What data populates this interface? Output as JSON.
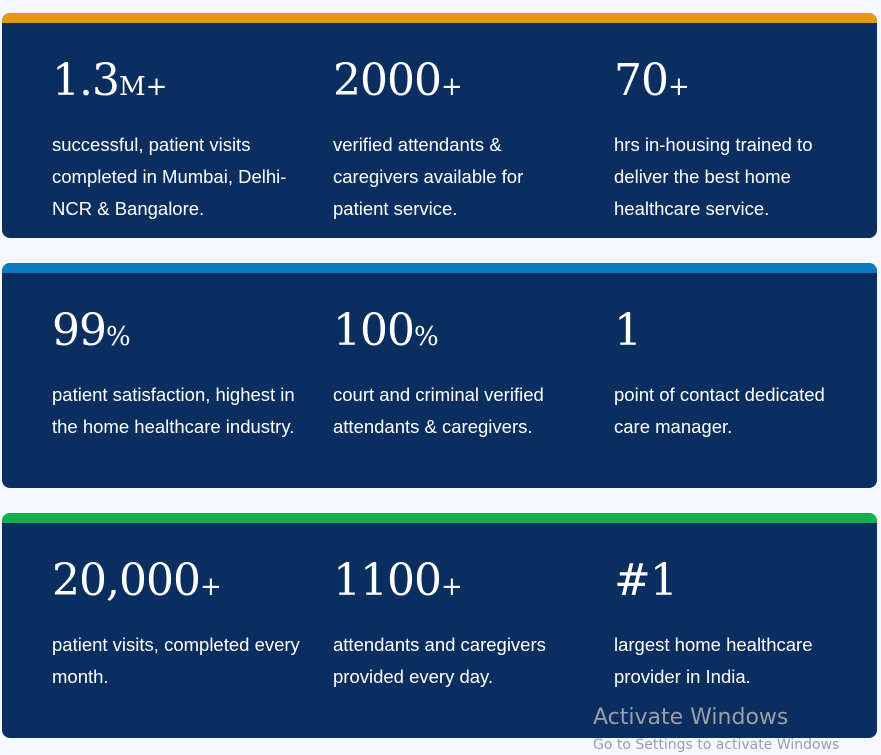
{
  "colors": {
    "card_background": "#0b2e61",
    "stripe_orange": "#e39b0d",
    "stripe_blue": "#0b79bd",
    "stripe_green": "#10b04c",
    "text": "#ffffff"
  },
  "cards": [
    {
      "stats": [
        {
          "number": "1.3",
          "suffix": "M+",
          "description": "successful, patient visits completed in Mumbai, Delhi-NCR & Bangalore."
        },
        {
          "number": "2000",
          "suffix": "+",
          "description": "verified attendants & caregivers available for patient service."
        },
        {
          "number": "70",
          "suffix": "+",
          "description": "hrs in-housing trained to deliver the best home healthcare service."
        }
      ]
    },
    {
      "stats": [
        {
          "number": "99",
          "suffix": "%",
          "description": "patient satisfaction, highest in the home healthcare industry."
        },
        {
          "number": "100",
          "suffix": "%",
          "description": "court and criminal verified attendants & caregivers."
        },
        {
          "number": "1",
          "suffix": "",
          "description": "point of contact dedicated care manager."
        }
      ]
    },
    {
      "stats": [
        {
          "number": "20,000",
          "suffix": "+",
          "description": "patient visits, completed every month."
        },
        {
          "number": "1100",
          "suffix": "+",
          "description": "attendants and caregivers provided every day."
        },
        {
          "number": "#1",
          "suffix": "",
          "description": "largest home healthcare provider in India."
        }
      ]
    }
  ],
  "watermark": {
    "title": "Activate Windows",
    "subtitle": "Go to Settings to activate Windows"
  }
}
